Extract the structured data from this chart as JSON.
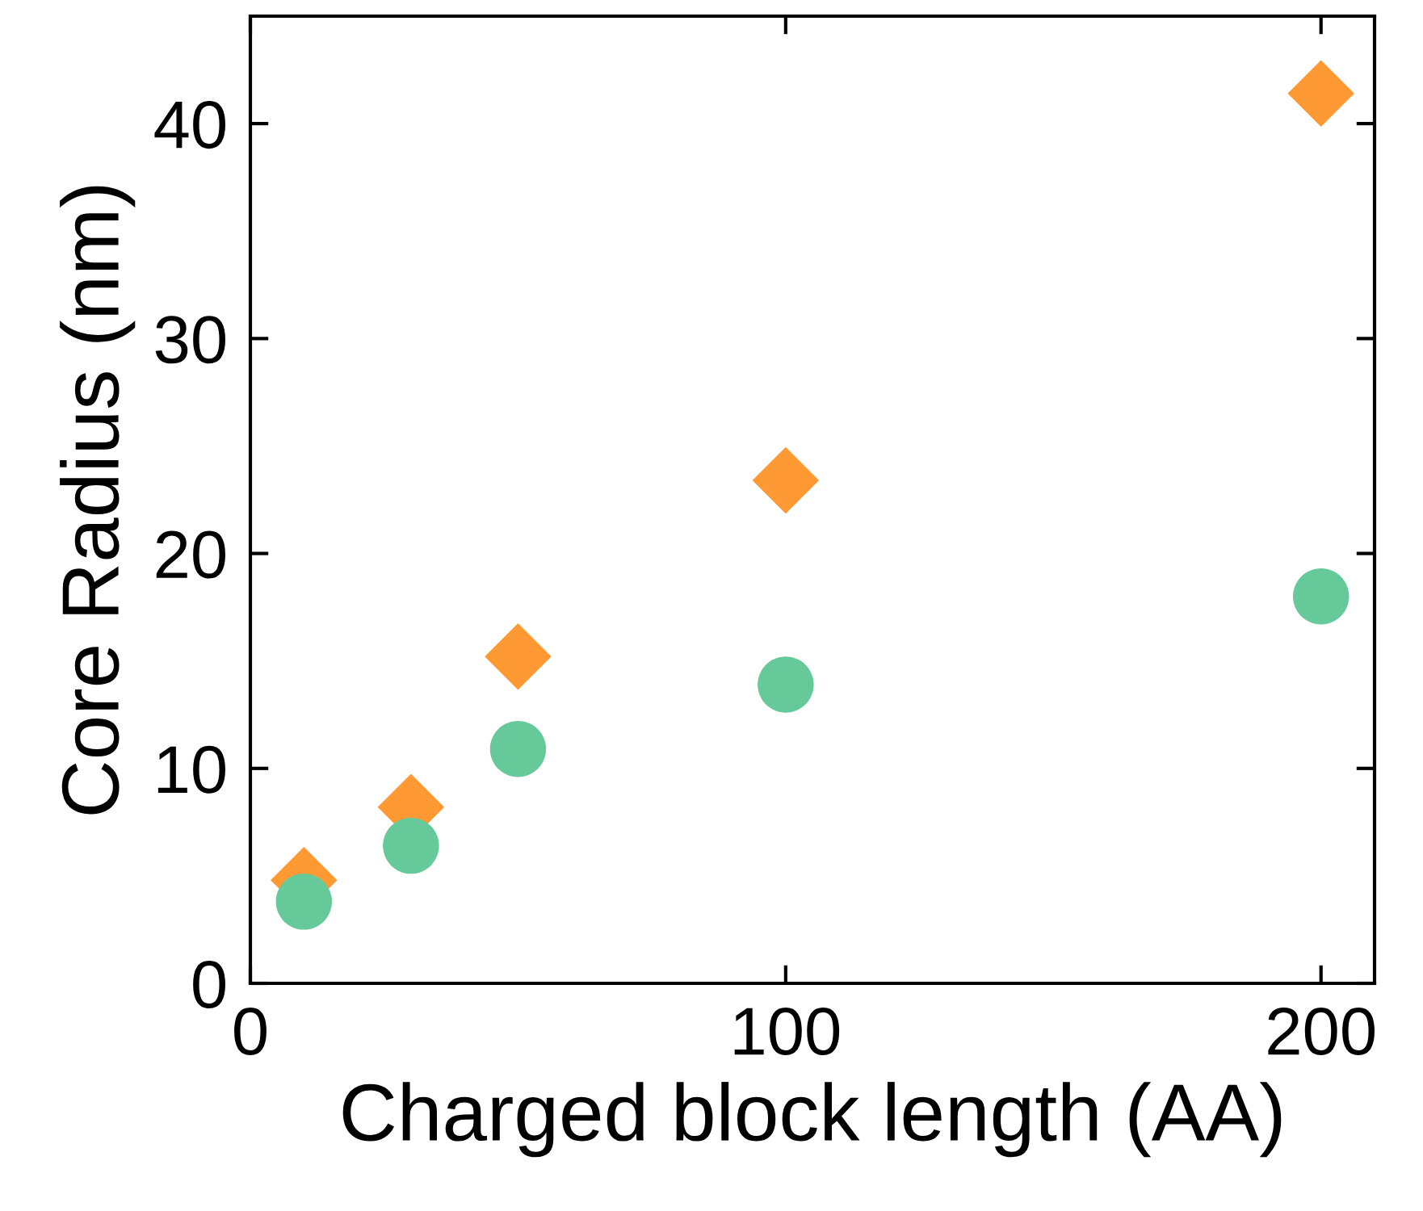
{
  "chart_data": {
    "type": "scatter",
    "xlabel": "Charged block length (AA)",
    "ylabel": "Core Radius (nm)",
    "x": [
      10,
      30,
      50,
      100,
      200
    ],
    "series": [
      {
        "color": "#ff9933",
        "marker": "diamond",
        "values": [
          4.8,
          8.2,
          15.2,
          23.4,
          41.4
        ]
      },
      {
        "color": "#66c999",
        "marker": "circle",
        "values": [
          3.8,
          6.4,
          10.9,
          13.9,
          18.0
        ]
      }
    ],
    "xlim": [
      0,
      210
    ],
    "ylim": [
      0,
      45
    ],
    "xticks": [
      0,
      100,
      200
    ],
    "yticks": [
      0,
      10,
      20,
      30,
      40
    ],
    "grid": false,
    "legend": false
  }
}
